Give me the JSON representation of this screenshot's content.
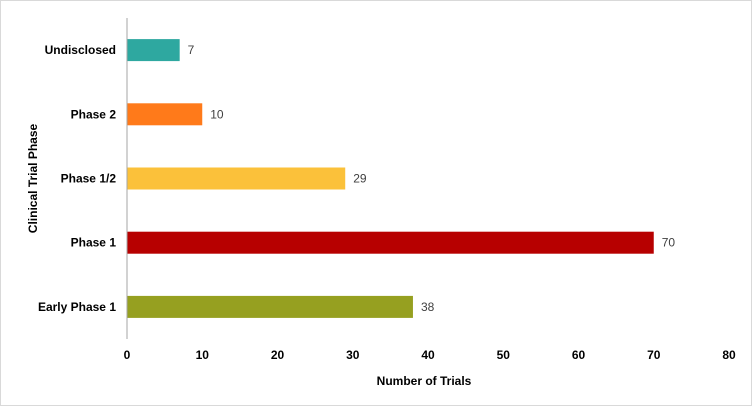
{
  "chart_data": {
    "type": "bar",
    "orientation": "horizontal",
    "categories": [
      "Undisclosed",
      "Phase 2",
      "Phase 1/2",
      "Phase 1",
      "Early Phase 1"
    ],
    "values": [
      7,
      10,
      29,
      70,
      38
    ],
    "colors": [
      "#2ea8a0",
      "#ff7a1a",
      "#fbc13a",
      "#b70000",
      "#96a020"
    ],
    "xlabel": "Number of Trials",
    "ylabel": "Clinical Trial Phase",
    "xlim": [
      0,
      80
    ],
    "xticks": [
      0,
      10,
      20,
      30,
      40,
      50,
      60,
      70,
      80
    ],
    "grid": false,
    "data_labels": true
  }
}
